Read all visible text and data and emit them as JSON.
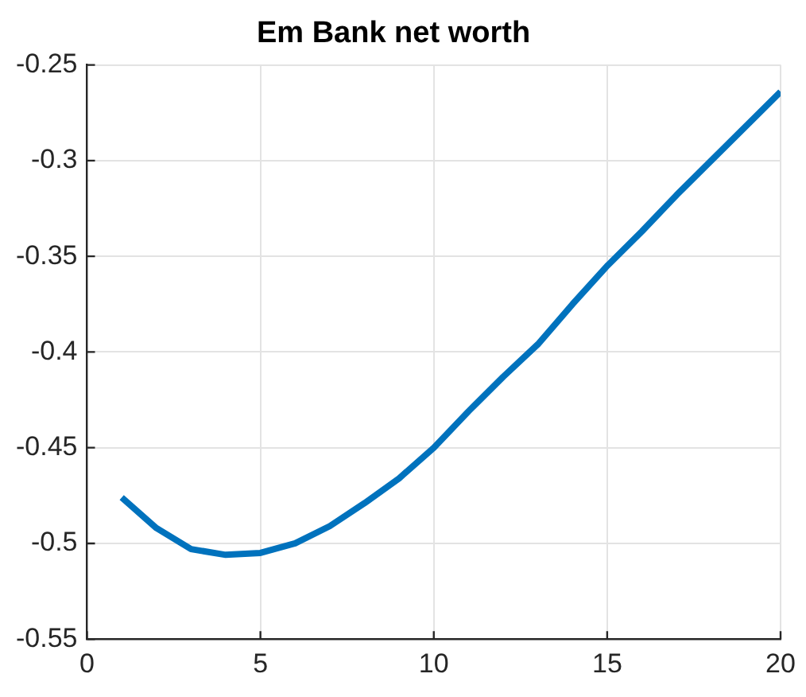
{
  "chart_data": {
    "type": "line",
    "title": "Em Bank net worth",
    "x": [
      1,
      2,
      3,
      4,
      5,
      6,
      7,
      8,
      9,
      10,
      11,
      12,
      13,
      14,
      15,
      16,
      17,
      18,
      19,
      20
    ],
    "series": [
      {
        "color": "#0072bd",
        "values": [
          -0.476,
          -0.492,
          -0.503,
          -0.506,
          -0.505,
          -0.5,
          -0.491,
          -0.479,
          -0.466,
          -0.45,
          -0.431,
          -0.413,
          -0.396,
          -0.375,
          -0.355,
          -0.337,
          -0.318,
          -0.3,
          -0.282,
          -0.264
        ]
      }
    ],
    "xlim": [
      0,
      20
    ],
    "xticks": [
      0,
      5,
      10,
      15,
      20
    ],
    "ylim": [
      -0.55,
      -0.25
    ],
    "yticks": [
      -0.55,
      -0.5,
      -0.45,
      -0.4,
      -0.35,
      -0.3,
      -0.25
    ],
    "grid": true,
    "legend": false,
    "marker": "none",
    "line_style": "solid"
  }
}
